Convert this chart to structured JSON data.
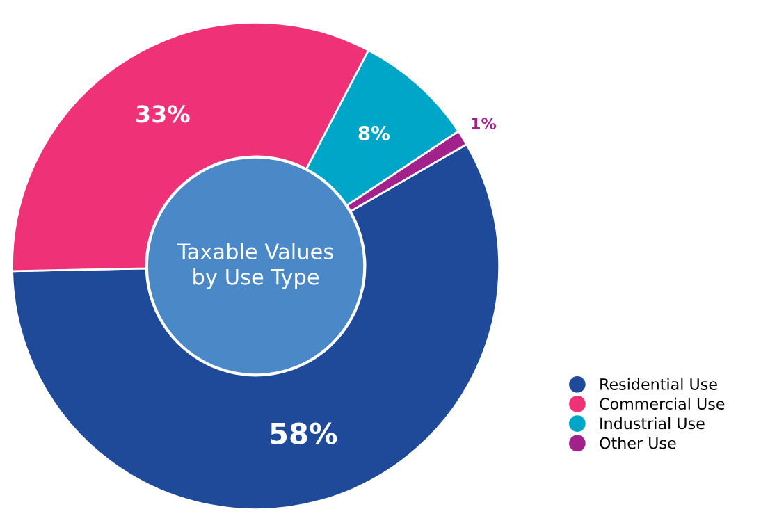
{
  "chart_data": {
    "type": "donut",
    "title": "Taxable Values\nby Use Type",
    "categories": [
      "Residential Use",
      "Commercial Use",
      "Industrial Use",
      "Other Use"
    ],
    "values": [
      58,
      33,
      8,
      1
    ],
    "colors": [
      "#1f4a9a",
      "#ef3177",
      "#00a6c8",
      "#a3218a"
    ],
    "value_labels": [
      "58%",
      "33%",
      "8%",
      "1%"
    ],
    "legend": "right"
  }
}
